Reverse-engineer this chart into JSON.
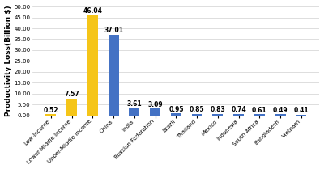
{
  "categories": [
    "Low-Income",
    "Lower-Middle Income",
    "Upper-Middle Income",
    "China",
    "India",
    "Russian Federation",
    "Brazil",
    "Thailand",
    "Mexico",
    "Indonesia",
    "South Africa",
    "Bangladesh",
    "Vietnam"
  ],
  "values": [
    0.52,
    7.57,
    46.04,
    37.01,
    3.61,
    3.09,
    0.95,
    0.85,
    0.83,
    0.74,
    0.61,
    0.49,
    0.41
  ],
  "bar_colors": [
    "#f5c518",
    "#f5c518",
    "#f5c518",
    "#4472c4",
    "#4472c4",
    "#4472c4",
    "#4472c4",
    "#4472c4",
    "#4472c4",
    "#4472c4",
    "#4472c4",
    "#4472c4",
    "#4472c4"
  ],
  "ylabel": "Productivity Loss(Billion $)",
  "ylim": [
    0,
    50
  ],
  "yticks": [
    0.0,
    5.0,
    10.0,
    15.0,
    20.0,
    25.0,
    30.0,
    35.0,
    40.0,
    45.0,
    50.0
  ],
  "background_color": "#ffffff",
  "label_fontsize": 5.5,
  "tick_fontsize": 5.0,
  "ylabel_fontsize": 6.5,
  "bar_width": 0.5
}
